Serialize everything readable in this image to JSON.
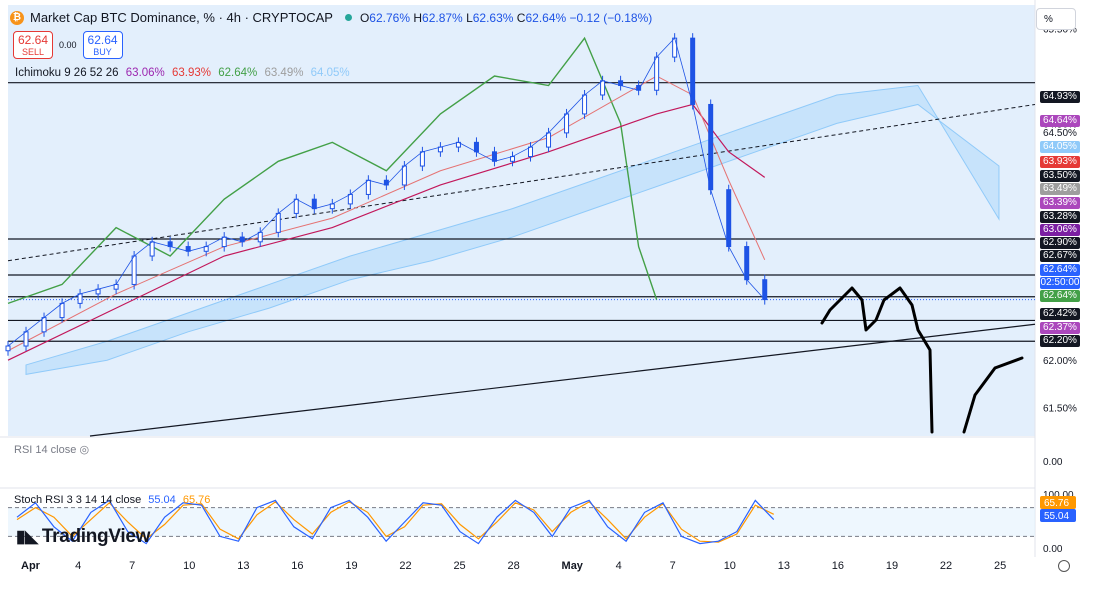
{
  "header": {
    "symbol_title": "Market Cap BTC Dominance, % · 4h · CRYPTOCAP",
    "coin_glyph": "₿",
    "o_label": "O",
    "o_val": "62.76%",
    "h_label": "H",
    "h_val": "62.87%",
    "l_label": "L",
    "l_val": "62.63%",
    "c_label": "C",
    "c_val": "62.64%",
    "change": "−0.12 (−0.18%)"
  },
  "trade": {
    "sell_price": "62.64",
    "sell_label": "SELL",
    "spread": "0.00",
    "buy_price": "62.64",
    "buy_label": "BUY"
  },
  "ichimoku": {
    "label": "Ichimoku 9 26 52 26",
    "values": [
      "63.06%",
      "63.93%",
      "62.64%",
      "63.49%",
      "64.05%"
    ],
    "colors": [
      "#9c27b0",
      "#e53935",
      "#43a047",
      "#9e9e9e",
      "#90caf9"
    ]
  },
  "rsi_label": "RSI 14 close",
  "stoch": {
    "label": "Stoch RSI 3 3 14 14 close",
    "k": "55.04",
    "d": "65.76"
  },
  "logo_text": "TradingView",
  "unit_button": "%",
  "chart_data": {
    "type": "line",
    "title": "Market Cap BTC Dominance, % · 4h · CRYPTOCAP",
    "ylim": [
      61.2,
      65.75
    ],
    "y_ticks": [
      "65.50%",
      "64.50%",
      "62.00%",
      "61.50%"
    ],
    "x_ticks": [
      "Apr",
      "4",
      "7",
      "10",
      "13",
      "16",
      "19",
      "22",
      "25",
      "28",
      "May",
      "4",
      "7",
      "10",
      "13",
      "16",
      "19",
      "22",
      "25"
    ],
    "price_series": {
      "name": "Close",
      "x": [
        "Mar 31",
        "Apr 1",
        "Apr 2",
        "Apr 3",
        "Apr 4",
        "Apr 5",
        "Apr 6",
        "Apr 7",
        "Apr 8",
        "Apr 9",
        "Apr 10",
        "Apr 11",
        "Apr 12",
        "Apr 13",
        "Apr 14",
        "Apr 15",
        "Apr 16",
        "Apr 17",
        "Apr 18",
        "Apr 19",
        "Apr 20",
        "Apr 21",
        "Apr 22",
        "Apr 23",
        "Apr 24",
        "Apr 25",
        "Apr 26",
        "Apr 27",
        "Apr 28",
        "Apr 29",
        "Apr 30",
        "May 1",
        "May 2",
        "May 3",
        "May 4",
        "May 5",
        "May 6",
        "May 7",
        "May 8",
        "May 9",
        "May 10",
        "May 11",
        "May 12"
      ],
      "values": [
        62.15,
        62.3,
        62.45,
        62.6,
        62.7,
        62.75,
        62.8,
        63.1,
        63.25,
        63.2,
        63.15,
        63.2,
        63.3,
        63.25,
        63.35,
        63.55,
        63.7,
        63.6,
        63.65,
        63.75,
        63.9,
        63.85,
        64.05,
        64.2,
        64.25,
        64.3,
        64.2,
        64.1,
        64.15,
        64.25,
        64.4,
        64.6,
        64.8,
        64.95,
        64.9,
        64.85,
        65.2,
        65.4,
        64.7,
        63.8,
        63.2,
        62.85,
        62.64
      ]
    },
    "conversion_line": {
      "name": "Conversion Line",
      "x": [
        "Mar 31",
        "Apr 6",
        "Apr 12",
        "Apr 18",
        "Apr 24",
        "Apr 30",
        "May 6",
        "May 8",
        "May 10",
        "May 12"
      ],
      "values": [
        62.1,
        62.7,
        63.2,
        63.5,
        64.0,
        64.35,
        65.0,
        64.8,
        63.9,
        63.06
      ]
    },
    "base_line": {
      "name": "Base Line",
      "x": [
        "Mar 31",
        "Apr 6",
        "Apr 12",
        "Apr 18",
        "Apr 24",
        "Apr 30",
        "May 6",
        "May 8",
        "May 10",
        "May 12"
      ],
      "values": [
        62.0,
        62.55,
        63.1,
        63.4,
        63.85,
        64.2,
        64.6,
        64.7,
        64.2,
        63.93
      ]
    },
    "lagging_span": {
      "name": "Lagging Span",
      "x": [
        "Mar 31",
        "Apr 3",
        "Apr 6",
        "Apr 9",
        "Apr 12",
        "Apr 15",
        "Apr 18",
        "Apr 21",
        "Apr 24",
        "Apr 27",
        "Apr 30",
        "May 2",
        "May 4",
        "May 5",
        "May 6"
      ],
      "values": [
        62.6,
        62.8,
        63.4,
        63.1,
        63.7,
        64.1,
        64.3,
        64.0,
        64.6,
        65.0,
        64.9,
        65.4,
        64.5,
        63.2,
        62.64
      ]
    },
    "cloud": {
      "name": "Cloud",
      "span_a": [
        61.95,
        62.2,
        62.5,
        62.8,
        63.1,
        63.35,
        63.6,
        63.9,
        64.2,
        64.5,
        64.8,
        64.9,
        63.49
      ],
      "span_b": [
        61.85,
        62.0,
        62.3,
        62.55,
        62.85,
        63.05,
        63.3,
        63.6,
        63.9,
        64.2,
        64.5,
        64.7,
        64.05
      ]
    },
    "horizontal_levels": [
      64.93,
      63.28,
      62.9,
      62.67,
      62.42,
      62.2
    ],
    "price_labels": [
      {
        "text": "64.93%",
        "bg": "#131722"
      },
      {
        "text": "64.64%",
        "bg": "#ab47bc"
      },
      {
        "text": "64.50%",
        "bg": ""
      },
      {
        "text": "64.05%",
        "bg": "#90caf9"
      },
      {
        "text": "63.93%",
        "bg": "#e53935"
      },
      {
        "text": "63.50%",
        "bg": "#131722"
      },
      {
        "text": "63.49%",
        "bg": "#9e9e9e"
      },
      {
        "text": "63.39%",
        "bg": "#ab47bc"
      },
      {
        "text": "63.28%",
        "bg": "#131722"
      },
      {
        "text": "63.06%",
        "bg": "#7b1fa2"
      },
      {
        "text": "62.90%",
        "bg": "#131722"
      },
      {
        "text": "62.67%",
        "bg": "#131722"
      },
      {
        "text": "62.64%",
        "bg": "#2962ff"
      },
      {
        "text": "02:50:00",
        "bg": "#2962ff"
      },
      {
        "text": "62.64%",
        "bg": "#43a047"
      },
      {
        "text": "62.42%",
        "bg": "#131722"
      },
      {
        "text": "62.37%",
        "bg": "#ab47bc"
      },
      {
        "text": "62.20%",
        "bg": "#131722"
      }
    ],
    "rsi": {
      "label": "RSI 14 close",
      "y_tick": "0.00"
    },
    "stoch_rsi": {
      "label": "Stoch RSI 3 3 14 14 close",
      "y_ticks": [
        "100.00",
        "0.00"
      ],
      "k_last": "55.04",
      "d_last": "65.76",
      "k_values": [
        60,
        90,
        40,
        10,
        70,
        95,
        30,
        5,
        60,
        90,
        85,
        20,
        10,
        80,
        95,
        40,
        15,
        80,
        95,
        60,
        10,
        50,
        90,
        85,
        30,
        5,
        60,
        95,
        70,
        20,
        80,
        95,
        40,
        10,
        70,
        90,
        20,
        5,
        10,
        30,
        95,
        55
      ],
      "d_values": [
        55,
        80,
        60,
        20,
        55,
        90,
        50,
        15,
        45,
        85,
        88,
        35,
        15,
        65,
        92,
        55,
        25,
        70,
        92,
        70,
        20,
        40,
        85,
        88,
        45,
        15,
        50,
        90,
        75,
        30,
        70,
        92,
        55,
        15,
        60,
        88,
        35,
        10,
        8,
        25,
        85,
        66
      ]
    }
  },
  "colors": {
    "price_up": "#1e53e5",
    "cloud_fill": "#bbdefb",
    "panel_bg": "#e3effc"
  }
}
